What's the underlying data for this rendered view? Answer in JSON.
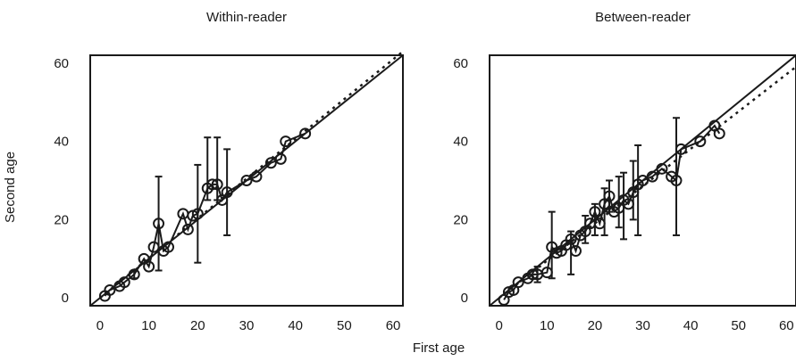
{
  "figure": {
    "xlabel": "First age",
    "ylabel": "Second age"
  },
  "chart_data": [
    {
      "type": "scatter",
      "title": "Within-reader",
      "xlim": [
        -2,
        62
      ],
      "ylim": [
        -2,
        62
      ],
      "xticks": [
        0,
        10,
        20,
        30,
        40,
        50,
        60
      ],
      "yticks": [
        0,
        20,
        40,
        60
      ],
      "grid": false,
      "reference_line": {
        "style": "solid",
        "slope": 1,
        "intercept": 0
      },
      "fit_line": {
        "style": "dotted",
        "x": [
          0,
          63
        ],
        "y": [
          0,
          64
        ]
      },
      "points": [
        {
          "x": 1,
          "y": 0.5
        },
        {
          "x": 2,
          "y": 2
        },
        {
          "x": 4,
          "y": 3
        },
        {
          "x": 5,
          "y": 4
        },
        {
          "x": 7,
          "y": 6,
          "err": [
            5,
            7
          ]
        },
        {
          "x": 9,
          "y": 10
        },
        {
          "x": 10,
          "y": 8
        },
        {
          "x": 11,
          "y": 13
        },
        {
          "x": 12,
          "y": 19,
          "err": [
            7,
            31
          ]
        },
        {
          "x": 13,
          "y": 12
        },
        {
          "x": 14,
          "y": 13
        },
        {
          "x": 17,
          "y": 21.5
        },
        {
          "x": 18,
          "y": 17.5
        },
        {
          "x": 19,
          "y": 21
        },
        {
          "x": 20,
          "y": 21.5,
          "err": [
            9,
            34
          ]
        },
        {
          "x": 22,
          "y": 28,
          "err": [
            25,
            41
          ]
        },
        {
          "x": 23,
          "y": 29
        },
        {
          "x": 24,
          "y": 29,
          "err": [
            25,
            41
          ]
        },
        {
          "x": 25,
          "y": 25
        },
        {
          "x": 26,
          "y": 27,
          "err": [
            16,
            38
          ]
        },
        {
          "x": 30,
          "y": 30
        },
        {
          "x": 32,
          "y": 31
        },
        {
          "x": 35,
          "y": 34.5
        },
        {
          "x": 37,
          "y": 35.5
        },
        {
          "x": 38,
          "y": 40
        },
        {
          "x": 42,
          "y": 42
        }
      ]
    },
    {
      "type": "scatter",
      "title": "Between-reader",
      "xlim": [
        -2,
        62
      ],
      "ylim": [
        -2,
        62
      ],
      "xticks": [
        0,
        10,
        20,
        30,
        40,
        50,
        60
      ],
      "yticks": [
        0,
        20,
        40,
        60
      ],
      "grid": false,
      "reference_line": {
        "style": "solid",
        "slope": 1,
        "intercept": 0
      },
      "fit_line": {
        "style": "dotted",
        "x": [
          0,
          63
        ],
        "y": [
          0,
          60
        ]
      },
      "points": [
        {
          "x": 1,
          "y": -0.5
        },
        {
          "x": 2,
          "y": 1.5
        },
        {
          "x": 3,
          "y": 2
        },
        {
          "x": 4,
          "y": 4
        },
        {
          "x": 6,
          "y": 5
        },
        {
          "x": 7,
          "y": 6
        },
        {
          "x": 8,
          "y": 6,
          "err": [
            4,
            8
          ]
        },
        {
          "x": 10,
          "y": 6.5
        },
        {
          "x": 11,
          "y": 13,
          "err": [
            5,
            22
          ]
        },
        {
          "x": 12,
          "y": 11.5
        },
        {
          "x": 13,
          "y": 12
        },
        {
          "x": 14,
          "y": 13.5
        },
        {
          "x": 15,
          "y": 15,
          "err": [
            6,
            17
          ]
        },
        {
          "x": 16,
          "y": 12
        },
        {
          "x": 17,
          "y": 16
        },
        {
          "x": 18,
          "y": 17,
          "err": [
            14,
            21
          ]
        },
        {
          "x": 19,
          "y": 19
        },
        {
          "x": 20,
          "y": 22,
          "err": [
            16,
            24
          ]
        },
        {
          "x": 21,
          "y": 19
        },
        {
          "x": 22,
          "y": 24,
          "err": [
            16,
            28
          ]
        },
        {
          "x": 23,
          "y": 26,
          "err": [
            22,
            30
          ]
        },
        {
          "x": 24,
          "y": 22
        },
        {
          "x": 25,
          "y": 23,
          "err": [
            18,
            31
          ]
        },
        {
          "x": 26,
          "y": 25,
          "err": [
            15,
            32
          ]
        },
        {
          "x": 27,
          "y": 24
        },
        {
          "x": 28,
          "y": 27,
          "err": [
            20,
            35
          ]
        },
        {
          "x": 29,
          "y": 29,
          "err": [
            16,
            39
          ]
        },
        {
          "x": 30,
          "y": 30
        },
        {
          "x": 32,
          "y": 31
        },
        {
          "x": 34,
          "y": 33
        },
        {
          "x": 36,
          "y": 31
        },
        {
          "x": 37,
          "y": 30,
          "err": [
            16,
            46
          ]
        },
        {
          "x": 38,
          "y": 38
        },
        {
          "x": 42,
          "y": 40
        },
        {
          "x": 45,
          "y": 44
        },
        {
          "x": 46,
          "y": 42
        }
      ]
    }
  ]
}
